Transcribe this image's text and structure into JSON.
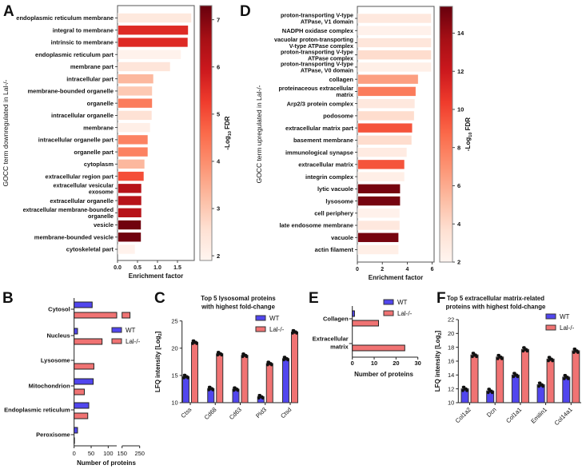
{
  "panel_letters": {
    "a": "A",
    "b": "B",
    "c": "C",
    "d": "D",
    "e": "E",
    "f": "F"
  },
  "colors": {
    "wt": "#5146ee",
    "lal": "#f07373",
    "cmap": [
      "#fff5f0",
      "#fee0d2",
      "#fcbba1",
      "#fc9272",
      "#fb6a4a",
      "#ef3b2c",
      "#cb181d",
      "#a50f15",
      "#67000d"
    ]
  },
  "chart_data": [
    {
      "id": "A",
      "type": "bar",
      "orientation": "horizontal",
      "ylabel": "GOCC term downregulated in Lal-/-",
      "xlabel": "Enrichment factor",
      "xlim": [
        0,
        1.9
      ],
      "xticks": [
        "0.0",
        "0.5",
        "1.0",
        "1.5"
      ],
      "xtick_values": [
        0,
        0.5,
        1.0,
        1.5
      ],
      "colorbar": {
        "label": "-Log10 FDR",
        "label_main": "-Log",
        "label_sub": "10",
        "label_end": " FDR",
        "range": [
          1.9,
          7.3
        ],
        "ticks": [
          "2",
          "3",
          "4",
          "5",
          "6",
          "7"
        ]
      },
      "terms": [
        {
          "label": [
            "endoplasmic reticulum membrane"
          ],
          "value": 1.84,
          "fdr": 2.3
        },
        {
          "label": [
            "integral to membrane"
          ],
          "value": 1.76,
          "fdr": 5.6
        },
        {
          "label": [
            "intrinsic to membrane"
          ],
          "value": 1.75,
          "fdr": 5.6
        },
        {
          "label": [
            "endoplasmic reticulum part"
          ],
          "value": 1.58,
          "fdr": 2.0
        },
        {
          "label": [
            "membrane part"
          ],
          "value": 1.31,
          "fdr": 2.4
        },
        {
          "label": [
            "intracellular part"
          ],
          "value": 0.89,
          "fdr": 3.3
        },
        {
          "label": [
            "membrane-bounded organelle"
          ],
          "value": 0.86,
          "fdr": 3.0
        },
        {
          "label": [
            "organelle"
          ],
          "value": 0.86,
          "fdr": 4.3
        },
        {
          "label": [
            "intracellular organelle"
          ],
          "value": 0.85,
          "fdr": 2.5
        },
        {
          "label": [
            "membrane"
          ],
          "value": 0.81,
          "fdr": 2.1
        },
        {
          "label": [
            "intracellular organelle part"
          ],
          "value": 0.75,
          "fdr": 4.2
        },
        {
          "label": [
            "organelle part"
          ],
          "value": 0.75,
          "fdr": 4.2
        },
        {
          "label": [
            "cytoplasm"
          ],
          "value": 0.67,
          "fdr": 3.3
        },
        {
          "label": [
            "extracellular region part"
          ],
          "value": 0.65,
          "fdr": 5.0
        },
        {
          "label": [
            "extracellular vesicular",
            "exosome"
          ],
          "value": 0.59,
          "fdr": 6.3
        },
        {
          "label": [
            "extracellular organelle"
          ],
          "value": 0.59,
          "fdr": 6.3
        },
        {
          "label": [
            "extracellular membrane-bounded",
            "organelle"
          ],
          "value": 0.59,
          "fdr": 6.3
        },
        {
          "label": [
            "vesicle"
          ],
          "value": 0.58,
          "fdr": 7.2
        },
        {
          "label": [
            "membrane-bounded vesicle"
          ],
          "value": 0.58,
          "fdr": 7.2
        },
        {
          "label": [
            "cytoskeletal part"
          ],
          "value": 0.43,
          "fdr": 2.0
        }
      ]
    },
    {
      "id": "D",
      "type": "bar",
      "orientation": "horizontal",
      "ylabel": "GOCC term upregulated in Lal-/-",
      "xlabel": "Enrichment factor",
      "xlim": [
        0,
        6.2
      ],
      "xticks": [
        "0",
        "2",
        "4",
        "6"
      ],
      "xtick_values": [
        0,
        2,
        4,
        6
      ],
      "colorbar": {
        "label": "-Log10 FDR",
        "label_main": "-Log",
        "label_sub": "10",
        "label_end": " FDR",
        "range": [
          2,
          15.4
        ],
        "ticks": [
          "2",
          "4",
          "6",
          "8",
          "10",
          "12",
          "14"
        ]
      },
      "terms": [
        {
          "label": [
            "proton-transporting V-type",
            "ATPase, V1 domain"
          ],
          "value": 5.9,
          "fdr": 3.0
        },
        {
          "label": [
            "NADPH oxidase complex"
          ],
          "value": 5.9,
          "fdr": 2.3
        },
        {
          "label": [
            "vacuolar proton-transporting",
            "V-type ATPase complex"
          ],
          "value": 5.9,
          "fdr": 3.2
        },
        {
          "label": [
            "proton-transporting V-type",
            "ATPase complex"
          ],
          "value": 5.9,
          "fdr": 3.8
        },
        {
          "label": [
            "proton-transporting V-type",
            "ATPase, V0 domain"
          ],
          "value": 5.9,
          "fdr": 2.5
        },
        {
          "label": [
            "collagen"
          ],
          "value": 4.85,
          "fdr": 6.5
        },
        {
          "label": [
            "proteinaceous extracellular",
            "matrix"
          ],
          "value": 4.66,
          "fdr": 8.0
        },
        {
          "label": [
            "Arp2/3 protein complex"
          ],
          "value": 4.58,
          "fdr": 3.0
        },
        {
          "label": [
            "podosome"
          ],
          "value": 4.53,
          "fdr": 3.8
        },
        {
          "label": [
            "extracellular matrix part"
          ],
          "value": 4.38,
          "fdr": 9.5
        },
        {
          "label": [
            "basement membrane"
          ],
          "value": 4.33,
          "fdr": 3.8
        },
        {
          "label": [
            "immunological synapse"
          ],
          "value": 3.94,
          "fdr": 2.8
        },
        {
          "label": [
            "extracellular matrix"
          ],
          "value": 3.75,
          "fdr": 9.5
        },
        {
          "label": [
            "integrin complex"
          ],
          "value": 3.75,
          "fdr": 2.5
        },
        {
          "label": [
            "lytic vacuole"
          ],
          "value": 3.41,
          "fdr": 15.0
        },
        {
          "label": [
            "lysosome"
          ],
          "value": 3.41,
          "fdr": 15.0
        },
        {
          "label": [
            "cell periphery"
          ],
          "value": 3.37,
          "fdr": 2.3
        },
        {
          "label": [
            "late endosome membrane"
          ],
          "value": 3.37,
          "fdr": 3.0
        },
        {
          "label": [
            "vacuole"
          ],
          "value": 3.28,
          "fdr": 15.0
        },
        {
          "label": [
            "actin filament"
          ],
          "value": 3.28,
          "fdr": 2.5
        }
      ]
    },
    {
      "id": "B",
      "type": "bar",
      "orientation": "horizontal",
      "xlabel": "Number of proteins",
      "axis_break": [
        125,
        150
      ],
      "xticks": [
        "0",
        "50",
        "100",
        "150",
        "250"
      ],
      "xtick_values": [
        0,
        50,
        100,
        150,
        250
      ],
      "legend": [
        "WT",
        "Lal-/-"
      ],
      "categories": [
        "Cytosol",
        "Nucleus",
        "Lysosome",
        "Mitochondrion",
        "Endoplasmic reticulum",
        "Peroxisome"
      ],
      "series": [
        {
          "name": "WT",
          "values": [
            53,
            10,
            0,
            56,
            43,
            10
          ]
        },
        {
          "name": "Lal-/-",
          "values": [
            195,
            82,
            58,
            30,
            40,
            1
          ]
        }
      ]
    },
    {
      "id": "C",
      "type": "bar",
      "title": [
        "Top 5 lysosomal proteins",
        "with highest fold-change"
      ],
      "ylabel": "LFQ intensity [Log",
      "ylabel_sub": "2",
      "ylabel_end": "]",
      "ylim": [
        10,
        25
      ],
      "yticks": [
        "10",
        "15",
        "20",
        "25"
      ],
      "ytick_values": [
        10,
        15,
        20,
        25
      ],
      "legend": [
        "WT",
        "Lal-/-"
      ],
      "categories": [
        "Ctss",
        "Cd68",
        "Cd63",
        "Pld3",
        "Ctsd"
      ],
      "series": [
        {
          "name": "WT",
          "values": [
            14.8,
            12.6,
            12.5,
            11.1,
            18.1
          ]
        },
        {
          "name": "Lal-/-",
          "values": [
            21.1,
            19.0,
            18.7,
            17.2,
            23.0
          ]
        }
      ]
    },
    {
      "id": "E",
      "type": "bar",
      "orientation": "horizontal",
      "xlabel": "Number of proteins",
      "xlim": [
        0,
        30
      ],
      "xticks": [
        "0",
        "10",
        "20",
        "30"
      ],
      "xtick_values": [
        0,
        10,
        20,
        30
      ],
      "legend": [
        "WT",
        "Lal-/-"
      ],
      "categories": [
        [
          "Collagen"
        ],
        [
          "Extracellular",
          "matrix"
        ]
      ],
      "series": [
        {
          "name": "WT",
          "values": [
            1,
            0
          ]
        },
        {
          "name": "Lal-/-",
          "values": [
            12,
            24
          ]
        }
      ]
    },
    {
      "id": "F",
      "type": "bar",
      "title": [
        "Top 5 extracellular matrix-related",
        "proteins with highest fold-change"
      ],
      "ylabel": "LFQ intensity [Log",
      "ylabel_sub": "2",
      "ylabel_end": "]",
      "ylim": [
        10,
        22
      ],
      "yticks": [
        "10",
        "12",
        "14",
        "16",
        "18",
        "20",
        "22"
      ],
      "ytick_values": [
        10,
        12,
        14,
        16,
        18,
        20,
        22
      ],
      "legend": [
        "WT",
        "Lal-/-"
      ],
      "categories": [
        "Col1a2",
        "Dcn",
        "Col1a1",
        "Emilin1",
        "Col14a1"
      ],
      "series": [
        {
          "name": "WT",
          "values": [
            12.0,
            11.7,
            14.0,
            12.6,
            13.7
          ]
        },
        {
          "name": "Lal-/-",
          "values": [
            16.9,
            16.6,
            17.7,
            16.3,
            17.5
          ]
        }
      ]
    }
  ]
}
